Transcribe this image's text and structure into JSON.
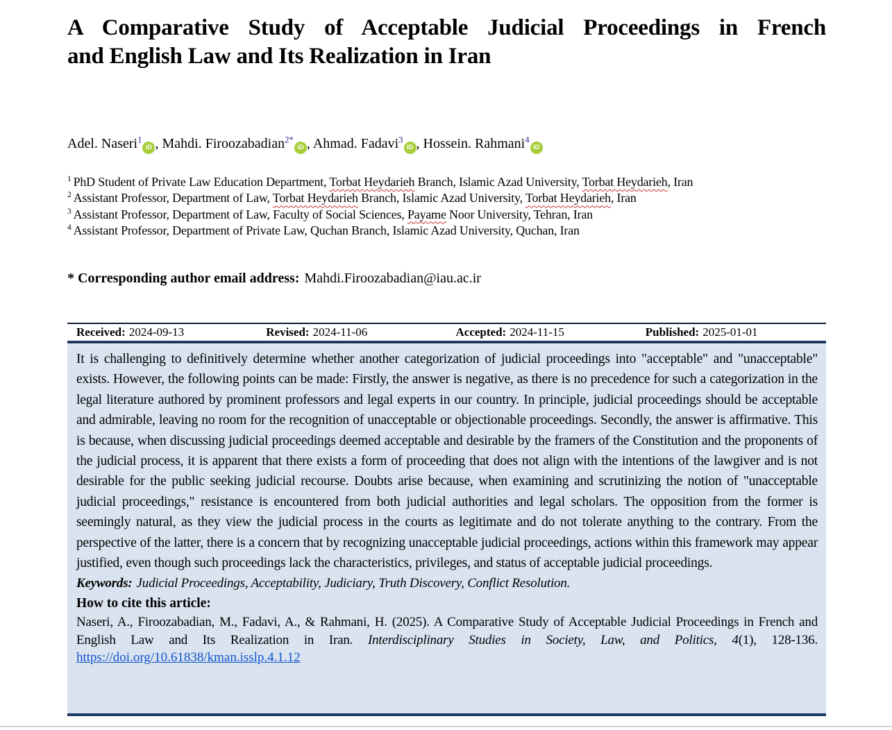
{
  "header": {
    "title_lines": [
      "A Comparative Study of Acceptable Judicial Proceedings in French",
      "and English Law and Its Realization in Iran"
    ]
  },
  "authors": [
    {
      "name": "Adel. Naseri",
      "sup": "1",
      "orcid": true
    },
    {
      "name": "Mahdi. Firoozabadian",
      "sup": "2*",
      "orcid": true
    },
    {
      "name": "Ahmad. Fadavi",
      "sup": "3",
      "orcid": true
    },
    {
      "name": "Hossein. Rahmani",
      "sup": "4",
      "orcid": true
    }
  ],
  "affiliations": [
    {
      "sup": "1",
      "parts": [
        {
          "t": "PhD Student of Private Law Education Department, "
        },
        {
          "t": "Torbat Heydarieh",
          "misspelled": true
        },
        {
          "t": " Branch, Islamic Azad University, "
        },
        {
          "t": "Torbat Heydarieh",
          "misspelled": true
        },
        {
          "t": ", Iran"
        }
      ]
    },
    {
      "sup": "2",
      "parts": [
        {
          "t": "Assistant Professor, Department of Law, "
        },
        {
          "t": "Torbat Heydarieh",
          "misspelled": true
        },
        {
          "t": " Branch, Islamic Azad University, "
        },
        {
          "t": "Torbat Heydarieh",
          "misspelled": true
        },
        {
          "t": ", Iran"
        }
      ]
    },
    {
      "sup": "3",
      "parts": [
        {
          "t": "Assistant Professor, Department of Law, Faculty of Social Sciences, "
        },
        {
          "t": "Payame",
          "misspelled": true
        },
        {
          "t": " Noor University, Tehran, Iran"
        }
      ]
    },
    {
      "sup": "4",
      "parts": [
        {
          "t": "Assistant Professor, Department of Private Law, Quchan Branch, Islamic Azad University, Quchan, Iran"
        }
      ]
    }
  ],
  "corresponding": {
    "label": "* Corresponding author email address:",
    "email": "Mahdi.Firoozabadian@iau.ac.ir"
  },
  "dates": [
    {
      "label": "Received:",
      "value": "2024-09-13"
    },
    {
      "label": "Revised:",
      "value": "2024-11-06"
    },
    {
      "label": "Accepted:",
      "value": "2024-11-15"
    },
    {
      "label": "Published:",
      "value": "2025-01-01"
    }
  ],
  "abstract": {
    "text": "It is challenging to definitively determine whether another categorization of judicial proceedings into \"acceptable\" and \"unacceptable\" exists. However, the following points can be made: Firstly, the answer is negative, as there is no precedence for such a categorization in the legal literature authored by prominent professors and legal experts in our country. In principle, judicial proceedings should be acceptable and admirable, leaving no room for the recognition of unacceptable or objectionable proceedings. Secondly, the answer is affirmative. This is because, when discussing judicial proceedings deemed acceptable and desirable by the framers of the Constitution and the proponents of the judicial process, it is apparent that there exists a form of proceeding that does not align with the intentions of the lawgiver and is not desirable for the public seeking judicial recourse. Doubts arise because, when examining and scrutinizing the notion of \"unacceptable judicial proceedings,\" resistance is encountered from both judicial authorities and legal scholars. The opposition from the former is seemingly natural, as they view the judicial process in the courts as legitimate and do not tolerate anything to the contrary. From the perspective of the latter, there is a concern that by recognizing unacceptable judicial proceedings, actions within this framework may appear justified, even though such proceedings lack the characteristics, privileges, and status of acceptable judicial proceedings."
  },
  "keywords": {
    "label": "Keywords:",
    "text": "Judicial Proceedings, Acceptability, Judiciary, Truth Discovery, Conflict Resolution."
  },
  "citation": {
    "heading": "How to cite this article:",
    "parts": [
      {
        "t": "Naseri, A., Firoozabadian, M., Fadavi, A., & Rahmani, H. (2025). A Comparative Study of Acceptable Judicial Proceedings in French and English Law and Its Realization in Iran. "
      },
      {
        "t": "Interdisciplinary Studies in Society, Law, and Politics, 4",
        "italic": true
      },
      {
        "t": "(1), 128-136."
      }
    ],
    "doi": "https://doi.org/10.61838/kman.isslp.4.1.12"
  },
  "icons": {
    "orcid": "iD"
  },
  "colors": {
    "rule_navy": "#1F3864",
    "abstract_background": "#DAE3F0",
    "orcid_green": "#A6CE39",
    "link_blue": "#1155CC",
    "superscript_blue": "#2E3192",
    "squiggle_red": "#D0342C"
  }
}
